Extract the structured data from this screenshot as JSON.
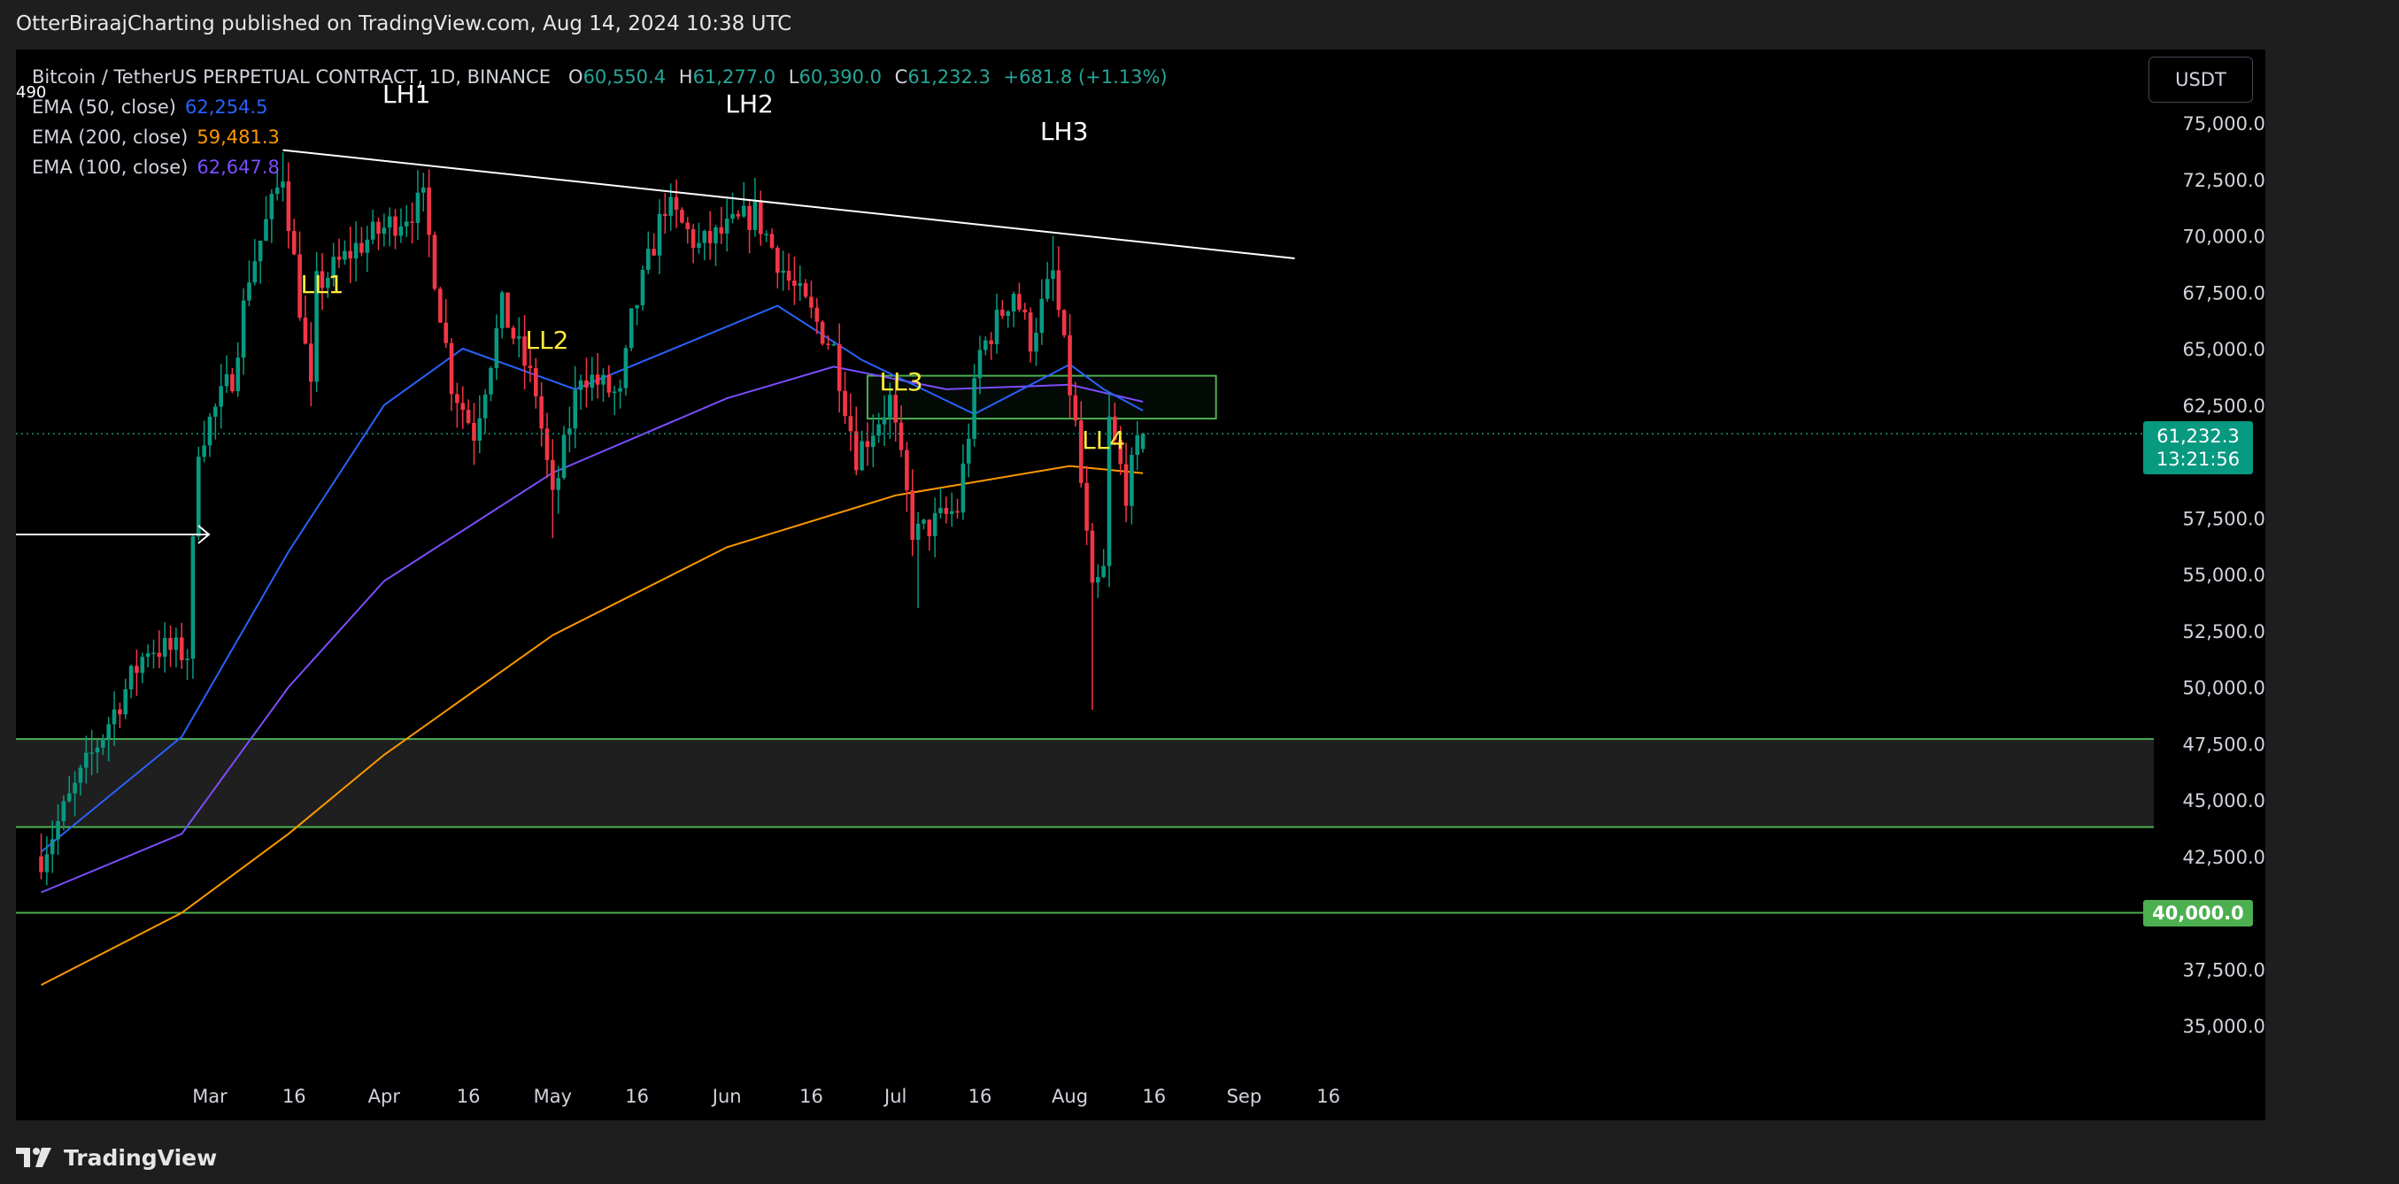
{
  "publisher_line": "OtterBiraajCharting published on TradingView.com, Aug 14, 2024 10:38 UTC",
  "symbol_line": {
    "symbol": "Bitcoin / TetherUS PERPETUAL CONTRACT, 1D, BINANCE",
    "open_label": "O",
    "open": "60,550.4",
    "high_label": "H",
    "high": "61,277.0",
    "low_label": "L",
    "low": "60,390.0",
    "close_label": "C",
    "close": "61,232.3",
    "change": "+681.8 (+1.13%)"
  },
  "stray_label": "490",
  "indicators": [
    {
      "label": "EMA (50, close)",
      "value": "62,254.5",
      "color": "#2962ff"
    },
    {
      "label": "EMA (200, close)",
      "value": "59,481.3",
      "color": "#ff9800"
    },
    {
      "label": "EMA (100, close)",
      "value": "62,647.8",
      "color": "#7c4dff"
    }
  ],
  "currency_button": "USDT",
  "last_price_tag": {
    "price": "61,232.3",
    "countdown": "13:21:56",
    "color": "#089981"
  },
  "level_tag": {
    "price": "40,000.0",
    "color": "#4caf50"
  },
  "brand": "TradingView",
  "colors": {
    "up": "#089981",
    "down": "#f23645",
    "zone": "#4caf50"
  },
  "chart_data": {
    "type": "candlestick",
    "y_ticks": [
      "75,000.0",
      "72,500.0",
      "70,000.0",
      "67,500.0",
      "65,000.0",
      "62,500.0",
      "57,500.0",
      "55,000.0",
      "52,500.0",
      "50,000.0",
      "47,500.0",
      "45,000.0",
      "42,500.0",
      "37,500.0",
      "35,000.0"
    ],
    "y_range": [
      33000,
      76500
    ],
    "x_ticks": [
      "Mar",
      "16",
      "Apr",
      "16",
      "May",
      "16",
      "Jun",
      "16",
      "Jul",
      "16",
      "Aug",
      "16",
      "Sep",
      "16"
    ],
    "annotations": [
      {
        "text": "LH1",
        "color": "#ffffff"
      },
      {
        "text": "LH2",
        "color": "#ffffff"
      },
      {
        "text": "LH3",
        "color": "#ffffff"
      },
      {
        "text": "LL1",
        "color": "#ffeb3b"
      },
      {
        "text": "LL2",
        "color": "#ffeb3b"
      },
      {
        "text": "LL3",
        "color": "#ffeb3b"
      },
      {
        "text": "LL4",
        "color": "#ffeb3b"
      }
    ],
    "trendline": {
      "from": {
        "date": "2024-03-14",
        "price": 73800
      },
      "to": {
        "date": "2024-09-10",
        "price": 69000
      }
    },
    "zones": [
      {
        "type": "box",
        "from_date": "2024-06-26",
        "to_date": "2024-08-27",
        "top": 63800,
        "bottom": 61900
      },
      {
        "type": "box",
        "from_date": "start",
        "to_date": "end",
        "top": 47700,
        "bottom": 43800
      },
      {
        "type": "hline",
        "price": 40000
      }
    ],
    "ema_end_values": {
      "ema50": 62254.5,
      "ema100": 62647.8,
      "ema200": 59481.3
    },
    "last_close": 61232.3
  }
}
